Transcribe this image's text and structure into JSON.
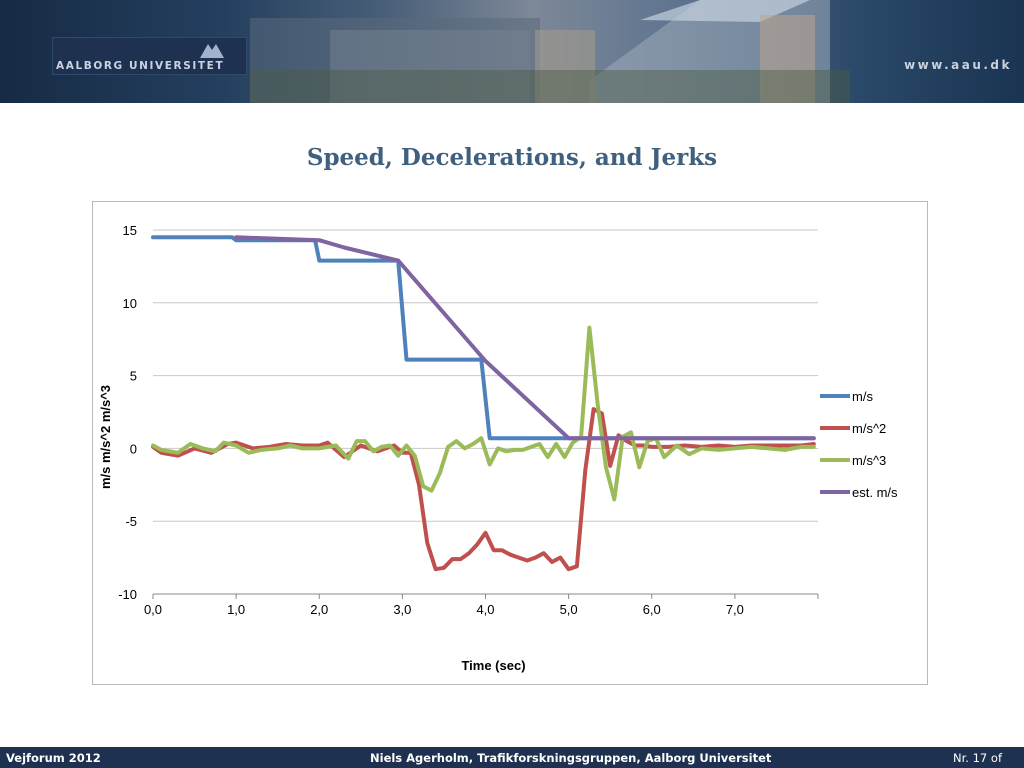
{
  "header": {
    "logo_text": "AALBORG UNIVERSITET",
    "url": "www.aau.dk"
  },
  "slide": {
    "title": "Speed, Decelerations, and Jerks"
  },
  "footer": {
    "left": "Vejforum 2012",
    "center": "Niels Agerholm, Trafikforskningsgruppen, Aalborg Universitet",
    "right": "Nr. 17 of"
  },
  "chart_data": {
    "type": "line",
    "title": "",
    "xlabel": "Time (sec)",
    "ylabel": "m/s m/s^2 m/s^3",
    "xlim": [
      0,
      8
    ],
    "ylim": [
      -10,
      15
    ],
    "x_ticks": [
      "0,0",
      "1,0",
      "2,0",
      "3,0",
      "4,0",
      "5,0",
      "6,0",
      "7,0"
    ],
    "y_ticks": [
      15,
      10,
      5,
      0,
      -5,
      -10
    ],
    "grid": "horizontal",
    "legend_position": "right",
    "series": [
      {
        "name": "m/s",
        "color": "#4f81bd",
        "x": [
          0.0,
          0.95,
          1.0,
          1.95,
          2.0,
          2.95,
          3.05,
          3.95,
          4.05,
          7.95
        ],
        "y": [
          14.5,
          14.5,
          14.3,
          14.3,
          12.9,
          12.9,
          6.1,
          6.1,
          0.7,
          0.7
        ]
      },
      {
        "name": "m/s^2",
        "color": "#c0504d",
        "x": [
          0.0,
          0.1,
          0.3,
          0.5,
          0.7,
          0.9,
          1.0,
          1.2,
          1.4,
          1.6,
          1.8,
          2.0,
          2.1,
          2.3,
          2.5,
          2.7,
          2.9,
          3.0,
          3.1,
          3.2,
          3.3,
          3.4,
          3.5,
          3.6,
          3.7,
          3.8,
          3.9,
          4.0,
          4.1,
          4.2,
          4.3,
          4.4,
          4.5,
          4.6,
          4.7,
          4.8,
          4.9,
          5.0,
          5.1,
          5.2,
          5.3,
          5.4,
          5.5,
          5.6,
          5.7,
          5.8,
          5.9,
          6.0,
          6.2,
          6.4,
          6.6,
          6.8,
          7.0,
          7.2,
          7.4,
          7.6,
          7.8,
          7.95
        ],
        "y": [
          0.1,
          -0.3,
          -0.5,
          0.0,
          -0.3,
          0.3,
          0.4,
          0.0,
          0.1,
          0.3,
          0.2,
          0.2,
          0.4,
          -0.6,
          0.2,
          -0.2,
          0.2,
          -0.3,
          -0.3,
          -2.5,
          -6.5,
          -8.3,
          -8.2,
          -7.6,
          -7.6,
          -7.2,
          -6.6,
          -5.8,
          -7.0,
          -7.0,
          -7.3,
          -7.5,
          -7.7,
          -7.5,
          -7.2,
          -7.8,
          -7.5,
          -8.3,
          -8.1,
          -1.5,
          2.7,
          2.4,
          -1.2,
          0.9,
          0.5,
          0.2,
          0.2,
          0.1,
          0.1,
          0.2,
          0.1,
          0.2,
          0.1,
          0.2,
          0.2,
          0.2,
          0.2,
          0.3
        ]
      },
      {
        "name": "m/s^3",
        "color": "#9bbb59",
        "x": [
          0.0,
          0.1,
          0.3,
          0.45,
          0.6,
          0.75,
          0.85,
          1.0,
          1.15,
          1.3,
          1.5,
          1.65,
          1.8,
          2.0,
          2.2,
          2.35,
          2.45,
          2.55,
          2.65,
          2.75,
          2.85,
          2.95,
          3.05,
          3.15,
          3.25,
          3.35,
          3.45,
          3.55,
          3.65,
          3.75,
          3.85,
          3.95,
          4.05,
          4.15,
          4.25,
          4.35,
          4.45,
          4.55,
          4.65,
          4.75,
          4.85,
          4.95,
          5.05,
          5.15,
          5.25,
          5.35,
          5.45,
          5.55,
          5.65,
          5.75,
          5.85,
          5.95,
          6.05,
          6.15,
          6.3,
          6.45,
          6.6,
          6.8,
          7.0,
          7.2,
          7.4,
          7.6,
          7.8,
          7.95
        ],
        "y": [
          0.2,
          -0.1,
          -0.3,
          0.3,
          0.0,
          -0.2,
          0.4,
          0.2,
          -0.3,
          -0.1,
          0.0,
          0.2,
          0.0,
          0.0,
          0.2,
          -0.7,
          0.5,
          0.5,
          -0.2,
          0.1,
          0.2,
          -0.5,
          0.2,
          -0.5,
          -2.6,
          -2.9,
          -1.7,
          0.1,
          0.5,
          0.0,
          0.3,
          0.7,
          -1.1,
          0.0,
          -0.2,
          -0.1,
          -0.1,
          0.1,
          0.3,
          -0.6,
          0.3,
          -0.6,
          0.4,
          0.8,
          8.3,
          3.0,
          -1.3,
          -3.5,
          0.8,
          1.1,
          -1.3,
          0.5,
          0.7,
          -0.6,
          0.2,
          -0.4,
          0.0,
          -0.1,
          0.0,
          0.1,
          0.0,
          -0.1,
          0.1,
          0.1
        ]
      },
      {
        "name": "est. m/s",
        "color": "#8064a2",
        "x": [
          1.0,
          2.0,
          2.3,
          2.95,
          4.0,
          5.0,
          7.95
        ],
        "y": [
          14.5,
          14.3,
          13.8,
          12.9,
          6.0,
          0.7,
          0.7
        ]
      }
    ]
  }
}
